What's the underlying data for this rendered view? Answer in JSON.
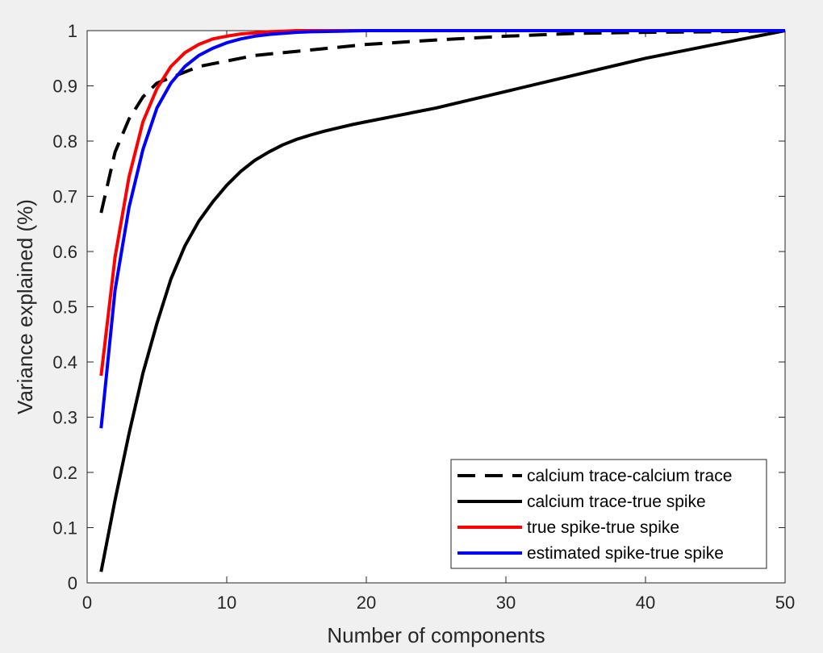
{
  "chart_data": {
    "type": "line",
    "title": "",
    "xlabel": "Number of components",
    "ylabel": "Variance explained (%)",
    "xlim": [
      0,
      50
    ],
    "ylim": [
      0,
      1
    ],
    "xticks": [
      0,
      10,
      20,
      30,
      40,
      50
    ],
    "yticks": [
      0,
      0.1,
      0.2,
      0.3,
      0.4,
      0.5,
      0.6,
      0.7,
      0.8,
      0.9,
      1
    ],
    "xtick_labels": [
      "0",
      "10",
      "20",
      "30",
      "40",
      "50"
    ],
    "ytick_labels": [
      "0",
      "0.1",
      "0.2",
      "0.3",
      "0.4",
      "0.5",
      "0.6",
      "0.7",
      "0.8",
      "0.9",
      "1"
    ],
    "grid": false,
    "legend_position": "bottom-right",
    "series": [
      {
        "name": "calcium trace-calcium trace",
        "color": "#000000",
        "dashed": true,
        "x": [
          1,
          2,
          3,
          4,
          5,
          6,
          7,
          8,
          9,
          10,
          12,
          14,
          16,
          18,
          20,
          25,
          30,
          35,
          40,
          45,
          50
        ],
        "y": [
          0.67,
          0.78,
          0.84,
          0.88,
          0.905,
          0.915,
          0.925,
          0.935,
          0.94,
          0.945,
          0.955,
          0.96,
          0.965,
          0.97,
          0.975,
          0.983,
          0.99,
          0.995,
          0.997,
          0.998,
          1.0
        ]
      },
      {
        "name": "calcium trace-true spike",
        "color": "#000000",
        "dashed": false,
        "x": [
          1,
          2,
          3,
          4,
          5,
          6,
          7,
          8,
          9,
          10,
          11,
          12,
          13,
          14,
          15,
          16,
          17,
          18,
          19,
          20,
          22,
          25,
          30,
          35,
          40,
          45,
          50
        ],
        "y": [
          0.02,
          0.15,
          0.27,
          0.38,
          0.47,
          0.55,
          0.61,
          0.655,
          0.69,
          0.72,
          0.745,
          0.765,
          0.78,
          0.793,
          0.803,
          0.811,
          0.818,
          0.824,
          0.83,
          0.835,
          0.845,
          0.86,
          0.89,
          0.92,
          0.95,
          0.975,
          1.0
        ]
      },
      {
        "name": "true spike-true spike",
        "color": "#ff0000",
        "dashed": false,
        "x": [
          1,
          2,
          3,
          4,
          5,
          6,
          7,
          8,
          9,
          10,
          11,
          12,
          13,
          14,
          15,
          20,
          25,
          30,
          35,
          40,
          45,
          50
        ],
        "y": [
          0.375,
          0.59,
          0.735,
          0.835,
          0.895,
          0.935,
          0.96,
          0.975,
          0.985,
          0.99,
          0.994,
          0.996,
          0.998,
          0.999,
          1.0,
          1.0,
          1.0,
          1.0,
          1.0,
          1.0,
          1.0,
          1.0
        ]
      },
      {
        "name": "estimated spike-true spike",
        "color": "#0000ff",
        "dashed": false,
        "x": [
          1,
          2,
          3,
          4,
          5,
          6,
          7,
          8,
          9,
          10,
          11,
          12,
          13,
          14,
          15,
          16,
          18,
          20,
          25,
          30,
          35,
          40,
          45,
          50
        ],
        "y": [
          0.28,
          0.53,
          0.68,
          0.785,
          0.86,
          0.905,
          0.935,
          0.955,
          0.968,
          0.978,
          0.985,
          0.99,
          0.993,
          0.995,
          0.997,
          0.998,
          0.999,
          1.0,
          1.0,
          1.0,
          1.0,
          1.0,
          1.0,
          1.0
        ]
      }
    ]
  }
}
